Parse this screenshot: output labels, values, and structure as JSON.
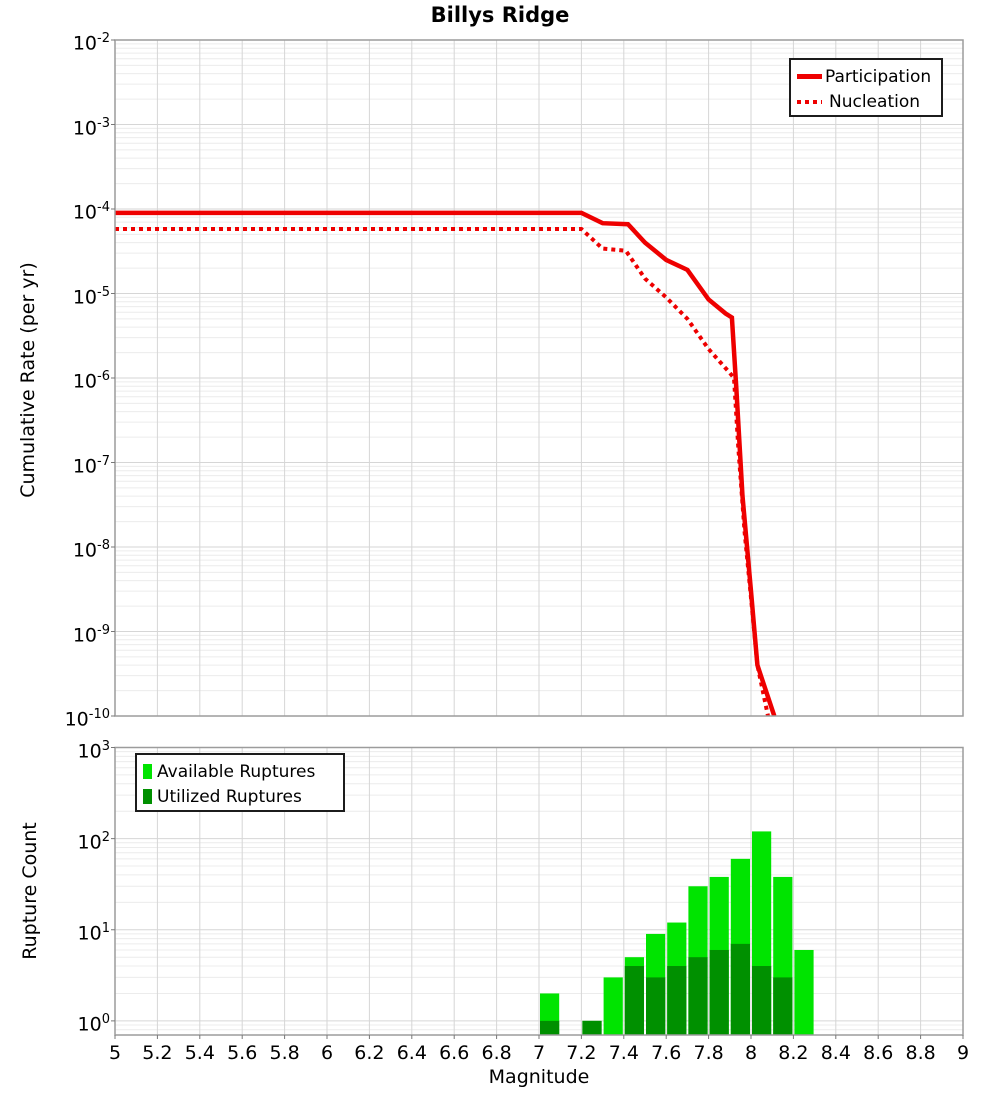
{
  "title": "Billys Ridge",
  "colors": {
    "red": "#ee0000",
    "light_green": "#00e400",
    "dark_green": "#009000",
    "grid_major": "#d6d6d6",
    "grid_minor": "#ececec",
    "frame": "#9c9c9c",
    "tick": "#777777",
    "text": "#000000",
    "background": "#ffffff"
  },
  "chart_data": [
    {
      "type": "line",
      "title": "Billys Ridge",
      "ylabel": "Cumulative Rate (per yr)",
      "xlabel": "",
      "xlim": [
        5,
        9
      ],
      "ylim": [
        1e-10,
        0.01
      ],
      "y_tick_exponents": [
        -2,
        -3,
        -4,
        -5,
        -6,
        -7,
        -8,
        -9,
        -10
      ],
      "x_ticks": {
        "values": [
          5,
          5.2,
          5.4,
          5.6,
          5.8,
          6,
          6.2,
          6.4,
          6.6,
          6.8,
          7,
          7.2,
          7.4,
          7.6,
          7.8,
          8,
          8.2,
          8.4,
          8.6,
          8.8,
          9
        ],
        "labels": [
          "5",
          "5.2",
          "5.4",
          "5.6",
          "5.8",
          "6",
          "6.2",
          "6.4",
          "6.6",
          "6.8",
          "7",
          "7.2",
          "7.4",
          "7.6",
          "7.8",
          "8",
          "8.2",
          "8.4",
          "8.6",
          "8.8",
          "9"
        ],
        "show_labels": false
      },
      "grid": true,
      "legend_position": "top-right",
      "series": [
        {
          "name": "Participation",
          "style": "solid",
          "color_key": "red",
          "points": [
            [
              5.0,
              9e-05
            ],
            [
              7.2,
              9e-05
            ],
            [
              7.3,
              6.8e-05
            ],
            [
              7.42,
              6.6e-05
            ],
            [
              7.5,
              4e-05
            ],
            [
              7.6,
              2.5e-05
            ],
            [
              7.7,
              1.9e-05
            ],
            [
              7.8,
              8.5e-06
            ],
            [
              7.88,
              5.8e-06
            ],
            [
              7.91,
              5.2e-06
            ],
            [
              7.93,
              8e-07
            ],
            [
              7.96,
              4e-08
            ],
            [
              8.0,
              3e-09
            ],
            [
              8.03,
              4e-10
            ],
            [
              8.11,
              1e-10
            ]
          ]
        },
        {
          "name": "Nucleation",
          "style": "dotted",
          "color_key": "red",
          "points": [
            [
              5.0,
              5.8e-05
            ],
            [
              7.2,
              5.8e-05
            ],
            [
              7.3,
              3.4e-05
            ],
            [
              7.41,
              3.2e-05
            ],
            [
              7.5,
              1.5e-05
            ],
            [
              7.6,
              9e-06
            ],
            [
              7.7,
              5e-06
            ],
            [
              7.8,
              2.2e-06
            ],
            [
              7.9,
              1.15e-06
            ],
            [
              7.92,
              1e-06
            ],
            [
              7.94,
              1.5e-07
            ],
            [
              7.97,
              1.5e-08
            ],
            [
              8.0,
              2.5e-09
            ],
            [
              8.03,
              4e-10
            ],
            [
              8.08,
              1e-10
            ]
          ]
        }
      ]
    },
    {
      "type": "bar",
      "title": "",
      "ylabel": "Rupture Count",
      "xlabel": "Magnitude",
      "xlim": [
        5,
        9
      ],
      "ylim": [
        1,
        1000
      ],
      "axis_floor": 0.7,
      "y_tick_exponents": [
        3,
        2,
        1,
        0
      ],
      "x_ticks": {
        "values": [
          5,
          5.2,
          5.4,
          5.6,
          5.8,
          6,
          6.2,
          6.4,
          6.6,
          6.8,
          7,
          7.2,
          7.4,
          7.6,
          7.8,
          8,
          8.2,
          8.4,
          8.6,
          8.8,
          9
        ],
        "labels": [
          "5",
          "5.2",
          "5.4",
          "5.6",
          "5.8",
          "6",
          "6.2",
          "6.4",
          "6.6",
          "6.8",
          "7",
          "7.2",
          "7.4",
          "7.6",
          "7.8",
          "8",
          "8.2",
          "8.4",
          "8.6",
          "8.8",
          "9"
        ],
        "show_labels": true
      },
      "grid": true,
      "legend_position": "top-left",
      "bin_width": 0.1,
      "bin_starts": [
        7.0,
        7.2,
        7.3,
        7.4,
        7.5,
        7.6,
        7.7,
        7.8,
        7.9,
        8.0,
        8.1,
        8.2
      ],
      "series": [
        {
          "name": "Available Ruptures",
          "color_key": "light_green",
          "values": [
            2,
            1,
            3,
            5,
            9,
            12,
            30,
            38,
            60,
            120,
            38,
            6
          ]
        },
        {
          "name": "Utilized Ruptures",
          "color_key": "dark_green",
          "values": [
            1,
            1,
            0,
            4,
            3,
            4,
            5,
            6,
            7,
            4,
            3,
            0
          ]
        }
      ]
    }
  ]
}
